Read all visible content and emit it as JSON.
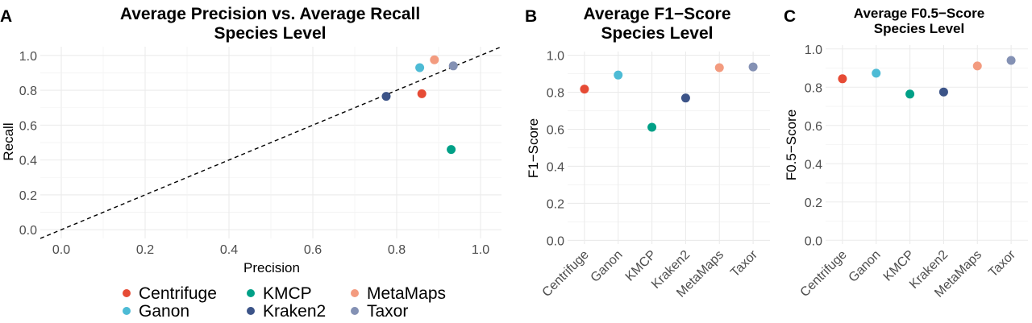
{
  "colors": {
    "Centrifuge": "#E64B35",
    "Ganon": "#4DBBD5",
    "KMCP": "#00A087",
    "Kraken2": "#3C5488",
    "MetaMaps": "#F39B7F",
    "Taxor": "#8491B4"
  },
  "chart_data": [
    {
      "panel": "A",
      "type": "scatter",
      "title": "Average Precision vs. Average Recall",
      "subtitle": "Species Level",
      "xlabel": "Precision",
      "ylabel": "Recall",
      "xlim": [
        -0.05,
        1.05
      ],
      "ylim": [
        -0.05,
        1.05
      ],
      "xticks": [
        "0.0",
        "0.2",
        "0.4",
        "0.6",
        "0.8",
        "1.0"
      ],
      "yticks": [
        "0.0",
        "0.2",
        "0.4",
        "0.6",
        "0.8",
        "1.0"
      ],
      "grid": true,
      "reference_line": "y = x (dashed)",
      "points": [
        {
          "name": "Centrifuge",
          "x": 0.86,
          "y": 0.78
        },
        {
          "name": "Ganon",
          "x": 0.855,
          "y": 0.93
        },
        {
          "name": "KMCP",
          "x": 0.93,
          "y": 0.46
        },
        {
          "name": "Kraken2",
          "x": 0.775,
          "y": 0.765
        },
        {
          "name": "MetaMaps",
          "x": 0.89,
          "y": 0.975
        },
        {
          "name": "Taxor",
          "x": 0.935,
          "y": 0.94
        }
      ],
      "legend": {
        "placement": "bottom",
        "entries": [
          "Centrifuge",
          "KMCP",
          "MetaMaps",
          "Ganon",
          "Kraken2",
          "Taxor"
        ]
      }
    },
    {
      "panel": "B",
      "type": "scatter",
      "title": "Average F1−Score",
      "subtitle": "Species Level",
      "xlabel": "",
      "ylabel": "F1−Score",
      "ylim": [
        -0.02,
        1.02
      ],
      "yticks": [
        "0.0",
        "0.2",
        "0.4",
        "0.6",
        "0.8",
        "1.0"
      ],
      "categories": [
        "Centrifuge",
        "Ganon",
        "KMCP",
        "Kraken2",
        "MetaMaps",
        "Taxor"
      ],
      "values": [
        0.817,
        0.893,
        0.611,
        0.769,
        0.933,
        0.937
      ],
      "grid": true
    },
    {
      "panel": "C",
      "type": "scatter",
      "title": "Average F0.5−Score",
      "subtitle": "Species Level",
      "xlabel": "",
      "ylabel": "F0.5−Score",
      "ylim": [
        -0.02,
        1.02
      ],
      "yticks": [
        "0.0",
        "0.2",
        "0.4",
        "0.6",
        "0.8",
        "1.0"
      ],
      "categories": [
        "Centrifuge",
        "Ganon",
        "KMCP",
        "Kraken2",
        "MetaMaps",
        "Taxor"
      ],
      "values": [
        0.844,
        0.873,
        0.764,
        0.775,
        0.911,
        0.94
      ],
      "grid": true
    }
  ]
}
